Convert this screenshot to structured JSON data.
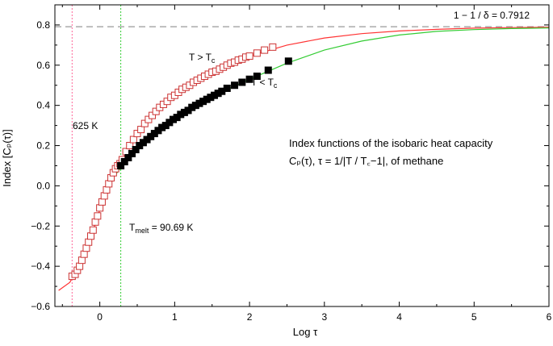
{
  "chart_data": {
    "type": "scatter",
    "title": "",
    "xlabel": "Log τ",
    "ylabel": "Index [Cₚ(τ)]",
    "xlim": [
      -0.6,
      6
    ],
    "ylim": [
      -0.6,
      0.9
    ],
    "xticks": [
      0,
      1,
      2,
      3,
      4,
      5,
      6
    ],
    "xtick_labels": [
      "0",
      "1",
      "2",
      "3",
      "4",
      "5",
      "6"
    ],
    "yticks": [
      -0.6,
      -0.4,
      -0.2,
      0.0,
      0.2,
      0.4,
      0.6,
      0.8
    ],
    "ytick_labels": [
      "−0.6",
      "−0.4",
      "−0.2",
      "0.0",
      "0.2",
      "0.4",
      "0.6",
      "0.8"
    ],
    "asymptote": {
      "y": 0.7912,
      "label": "1 − 1 / δ = 0.7912",
      "color": "#999999"
    },
    "vlines": [
      {
        "x": -0.37,
        "label": "625 K",
        "color": "#ff6699"
      },
      {
        "x": 0.28,
        "label": "Tmelt = 90.69 K",
        "color": "#33cc33"
      }
    ],
    "annotation": {
      "line1": "Index functions of the isobaric heat capacity",
      "line2": "Cₚ(τ), τ = 1/|T / T꜀−1|, of methane"
    },
    "series": [
      {
        "name": "T > Tc",
        "marker": "open-square",
        "curve_color": "#ff3333",
        "points": [
          [
            -0.37,
            -0.45
          ],
          [
            -0.33,
            -0.44
          ],
          [
            -0.3,
            -0.42
          ],
          [
            -0.27,
            -0.4
          ],
          [
            -0.24,
            -0.37
          ],
          [
            -0.21,
            -0.34
          ],
          [
            -0.18,
            -0.31
          ],
          [
            -0.15,
            -0.28
          ],
          [
            -0.12,
            -0.25
          ],
          [
            -0.09,
            -0.22
          ],
          [
            -0.06,
            -0.18
          ],
          [
            -0.03,
            -0.15
          ],
          [
            0.0,
            -0.11
          ],
          [
            0.03,
            -0.08
          ],
          [
            0.06,
            -0.05
          ],
          [
            0.09,
            -0.02
          ],
          [
            0.12,
            0.01
          ],
          [
            0.15,
            0.04
          ],
          [
            0.18,
            0.065
          ],
          [
            0.21,
            0.085
          ],
          [
            0.24,
            0.1
          ],
          [
            0.27,
            0.11
          ],
          [
            0.3,
            0.13
          ],
          [
            0.35,
            0.17
          ],
          [
            0.4,
            0.2
          ],
          [
            0.45,
            0.23
          ],
          [
            0.5,
            0.26
          ],
          [
            0.55,
            0.28
          ],
          [
            0.6,
            0.31
          ],
          [
            0.65,
            0.33
          ],
          [
            0.7,
            0.35
          ],
          [
            0.75,
            0.37
          ],
          [
            0.8,
            0.39
          ],
          [
            0.85,
            0.405
          ],
          [
            0.9,
            0.42
          ],
          [
            0.95,
            0.44
          ],
          [
            1.0,
            0.45
          ],
          [
            1.05,
            0.465
          ],
          [
            1.1,
            0.48
          ],
          [
            1.15,
            0.49
          ],
          [
            1.2,
            0.5
          ],
          [
            1.25,
            0.515
          ],
          [
            1.3,
            0.525
          ],
          [
            1.35,
            0.535
          ],
          [
            1.4,
            0.545
          ],
          [
            1.45,
            0.555
          ],
          [
            1.5,
            0.565
          ],
          [
            1.55,
            0.57
          ],
          [
            1.6,
            0.58
          ],
          [
            1.65,
            0.59
          ],
          [
            1.7,
            0.6
          ],
          [
            1.75,
            0.61
          ],
          [
            1.8,
            0.615
          ],
          [
            1.85,
            0.625
          ],
          [
            1.9,
            0.63
          ],
          [
            1.95,
            0.64
          ],
          [
            2.0,
            0.645
          ],
          [
            2.1,
            0.66
          ],
          [
            2.2,
            0.675
          ],
          [
            2.31,
            0.69
          ]
        ],
        "curve": [
          [
            -0.55,
            -0.52
          ],
          [
            -0.4,
            -0.48
          ],
          [
            -0.2,
            -0.35
          ],
          [
            0.0,
            -0.12
          ],
          [
            0.2,
            0.07
          ],
          [
            0.3,
            0.13
          ],
          [
            0.5,
            0.26
          ],
          [
            1.0,
            0.45
          ],
          [
            1.5,
            0.565
          ],
          [
            2.0,
            0.645
          ],
          [
            2.5,
            0.7
          ],
          [
            3.0,
            0.735
          ],
          [
            3.5,
            0.757
          ],
          [
            4.0,
            0.77
          ],
          [
            4.5,
            0.778
          ],
          [
            5.0,
            0.784
          ],
          [
            5.5,
            0.787
          ],
          [
            6.0,
            0.789
          ]
        ]
      },
      {
        "name": "T < Tc",
        "marker": "filled-square",
        "curve_color": "#33cc33",
        "points": [
          [
            0.28,
            0.1
          ],
          [
            0.33,
            0.12
          ],
          [
            0.38,
            0.14
          ],
          [
            0.43,
            0.16
          ],
          [
            0.48,
            0.18
          ],
          [
            0.53,
            0.2
          ],
          [
            0.58,
            0.215
          ],
          [
            0.63,
            0.23
          ],
          [
            0.68,
            0.245
          ],
          [
            0.73,
            0.26
          ],
          [
            0.78,
            0.275
          ],
          [
            0.83,
            0.29
          ],
          [
            0.88,
            0.3
          ],
          [
            0.93,
            0.315
          ],
          [
            0.98,
            0.33
          ],
          [
            1.03,
            0.34
          ],
          [
            1.08,
            0.355
          ],
          [
            1.13,
            0.365
          ],
          [
            1.18,
            0.375
          ],
          [
            1.23,
            0.39
          ],
          [
            1.28,
            0.4
          ],
          [
            1.33,
            0.41
          ],
          [
            1.38,
            0.42
          ],
          [
            1.43,
            0.43
          ],
          [
            1.48,
            0.44
          ],
          [
            1.53,
            0.45
          ],
          [
            1.58,
            0.46
          ],
          [
            1.63,
            0.47
          ],
          [
            1.7,
            0.485
          ],
          [
            1.8,
            0.5
          ],
          [
            1.9,
            0.515
          ],
          [
            2.0,
            0.53
          ],
          [
            2.1,
            0.545
          ],
          [
            2.25,
            0.575
          ],
          [
            2.52,
            0.62
          ]
        ],
        "curve": [
          [
            0.2,
            0.05
          ],
          [
            0.3,
            0.1
          ],
          [
            0.5,
            0.19
          ],
          [
            1.0,
            0.335
          ],
          [
            1.5,
            0.445
          ],
          [
            2.0,
            0.53
          ],
          [
            2.5,
            0.61
          ],
          [
            3.0,
            0.675
          ],
          [
            3.5,
            0.72
          ],
          [
            4.0,
            0.75
          ],
          [
            4.5,
            0.768
          ],
          [
            5.0,
            0.777
          ],
          [
            5.5,
            0.782
          ],
          [
            6.0,
            0.785
          ]
        ]
      }
    ]
  },
  "labels": {
    "t_above_main": "T > T",
    "t_above_sub": "c",
    "t_below_main": "T < T",
    "t_below_sub": "c",
    "tmelt_main": "T",
    "tmelt_sub": "melt",
    "tmelt_rest": " = 90.69 K"
  }
}
